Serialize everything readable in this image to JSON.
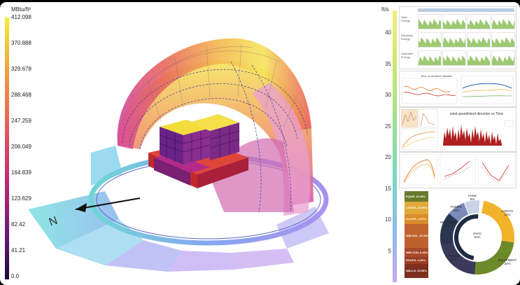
{
  "left_legend": {
    "unit": "MBtu/ft²",
    "ticks": [
      "412.098",
      "370.888",
      "329.678",
      "288.468",
      "247.259",
      "206.049",
      "164.839",
      "123.629",
      "82.42",
      "41.21",
      "0.0"
    ]
  },
  "right_legend": {
    "unit": "ft/s",
    "ticks": [
      "40",
      "35",
      "30",
      "25",
      "20",
      "15",
      "10",
      "5"
    ]
  },
  "compass": {
    "north_label": "N"
  },
  "mini_charts": {
    "wind_title": "wind speed/wind direction vs Time",
    "rows": [
      "Total Energy",
      "Electricity Energy",
      "Gas/other Energy"
    ],
    "lines_title": "Time vs Ambient Variable"
  },
  "stacked_bar": {
    "segments": [
      {
        "label": "EQUIP, 19.49%",
        "color": "#6a7a2e"
      },
      {
        "label": "LIGHTS, 19.98%",
        "color": "#e0a93a"
      },
      {
        "label": "OCCUP., 4.87%",
        "color": "#d98d2a"
      },
      {
        "label": "WIN SOL, 30.41%",
        "color": "#c0622e"
      },
      {
        "label": "WIN CON, 8.43%",
        "color": "#a8492a"
      },
      {
        "label": "ROOFS, 6.26%",
        "color": "#9a3e25"
      },
      {
        "label": "WALLS, 10.98%",
        "color": "#7e2f1e"
      }
    ]
  },
  "donut": {
    "center": "HVAC\n51%",
    "labels": {
      "fans": "FANS\n6%",
      "pumps": "PUMPS\n11%",
      "heat_rxn": "HEAT RXN\n5%",
      "lights": "LIGHTS\n24%",
      "equipment": "EQUIPMENT\n24%",
      "cooling": "COOLING\n30%"
    }
  }
}
